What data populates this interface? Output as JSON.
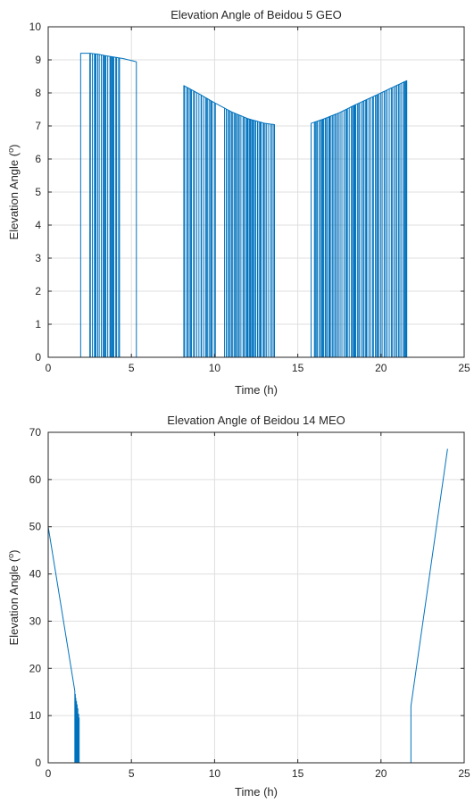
{
  "chart_data": [
    {
      "type": "line",
      "title": "Elevation Angle of Beidou 5 GEO",
      "xlabel": "Time (h)",
      "ylabel_base": "Elevation Angle (",
      "ylabel_sup": "o",
      "ylabel_end": ")",
      "xlim": [
        0,
        25
      ],
      "ylim": [
        0,
        10
      ],
      "xticks": [
        0,
        5,
        10,
        15,
        20,
        25
      ],
      "yticks": [
        0,
        1,
        2,
        3,
        4,
        5,
        6,
        7,
        8,
        9,
        10
      ],
      "grid": true,
      "color": "#0072bd",
      "series": [
        {
          "visible_windows": [
            [
              1.95,
              5.3
            ],
            [
              8.15,
              13.6
            ],
            [
              15.8,
              21.55
            ]
          ],
          "dense_dropouts": [
            [
              2.5,
              4.4
            ],
            [
              8.2,
              10.1
            ],
            [
              10.6,
              13.6
            ],
            [
              16.0,
              21.55
            ]
          ],
          "envelope": [
            [
              1.95,
              9.2
            ],
            [
              2.5,
              9.2
            ],
            [
              3.0,
              9.17
            ],
            [
              3.5,
              9.12
            ],
            [
              4.0,
              9.08
            ],
            [
              4.5,
              9.04
            ],
            [
              5.0,
              8.98
            ],
            [
              5.3,
              8.94
            ],
            [
              8.15,
              8.22
            ],
            [
              9.0,
              7.99
            ],
            [
              10.0,
              7.7
            ],
            [
              11.0,
              7.43
            ],
            [
              12.0,
              7.22
            ],
            [
              13.0,
              7.08
            ],
            [
              13.6,
              7.04
            ],
            [
              15.8,
              7.08
            ],
            [
              16.5,
              7.2
            ],
            [
              17.5,
              7.4
            ],
            [
              18.5,
              7.65
            ],
            [
              19.5,
              7.88
            ],
            [
              20.5,
              8.12
            ],
            [
              21.55,
              8.37
            ]
          ],
          "x_end": 24.0
        }
      ]
    },
    {
      "type": "line",
      "title": "Elevation Angle of Beidou 14 MEO",
      "xlabel": "Time (h)",
      "ylabel_base": "Elevation Angle (",
      "ylabel_sup": "o",
      "ylabel_end": ")",
      "xlim": [
        0,
        25
      ],
      "ylim": [
        0,
        70
      ],
      "xticks": [
        0,
        5,
        10,
        15,
        20,
        25
      ],
      "yticks": [
        0,
        10,
        20,
        30,
        40,
        50,
        60,
        70
      ],
      "grid": true,
      "color": "#0072bd",
      "series": [
        {
          "points": [
            [
              0.0,
              50.0
            ],
            [
              1.6,
              15.2
            ],
            [
              1.6,
              0.0
            ],
            [
              1.63,
              14.5
            ],
            [
              1.63,
              0.0
            ],
            [
              1.66,
              13.7
            ],
            [
              1.66,
              0.0
            ],
            [
              1.7,
              13.0
            ],
            [
              1.7,
              0.0
            ],
            [
              1.74,
              12.3
            ],
            [
              1.74,
              0.0
            ],
            [
              1.78,
              11.5
            ],
            [
              1.78,
              0.0
            ],
            [
              1.83,
              10.3
            ],
            [
              1.83,
              0.0
            ],
            [
              1.86,
              9.5
            ],
            [
              1.86,
              0.0
            ],
            [
              21.8,
              0.0
            ],
            [
              21.8,
              12.0
            ],
            [
              24.0,
              66.5
            ]
          ]
        }
      ]
    }
  ]
}
